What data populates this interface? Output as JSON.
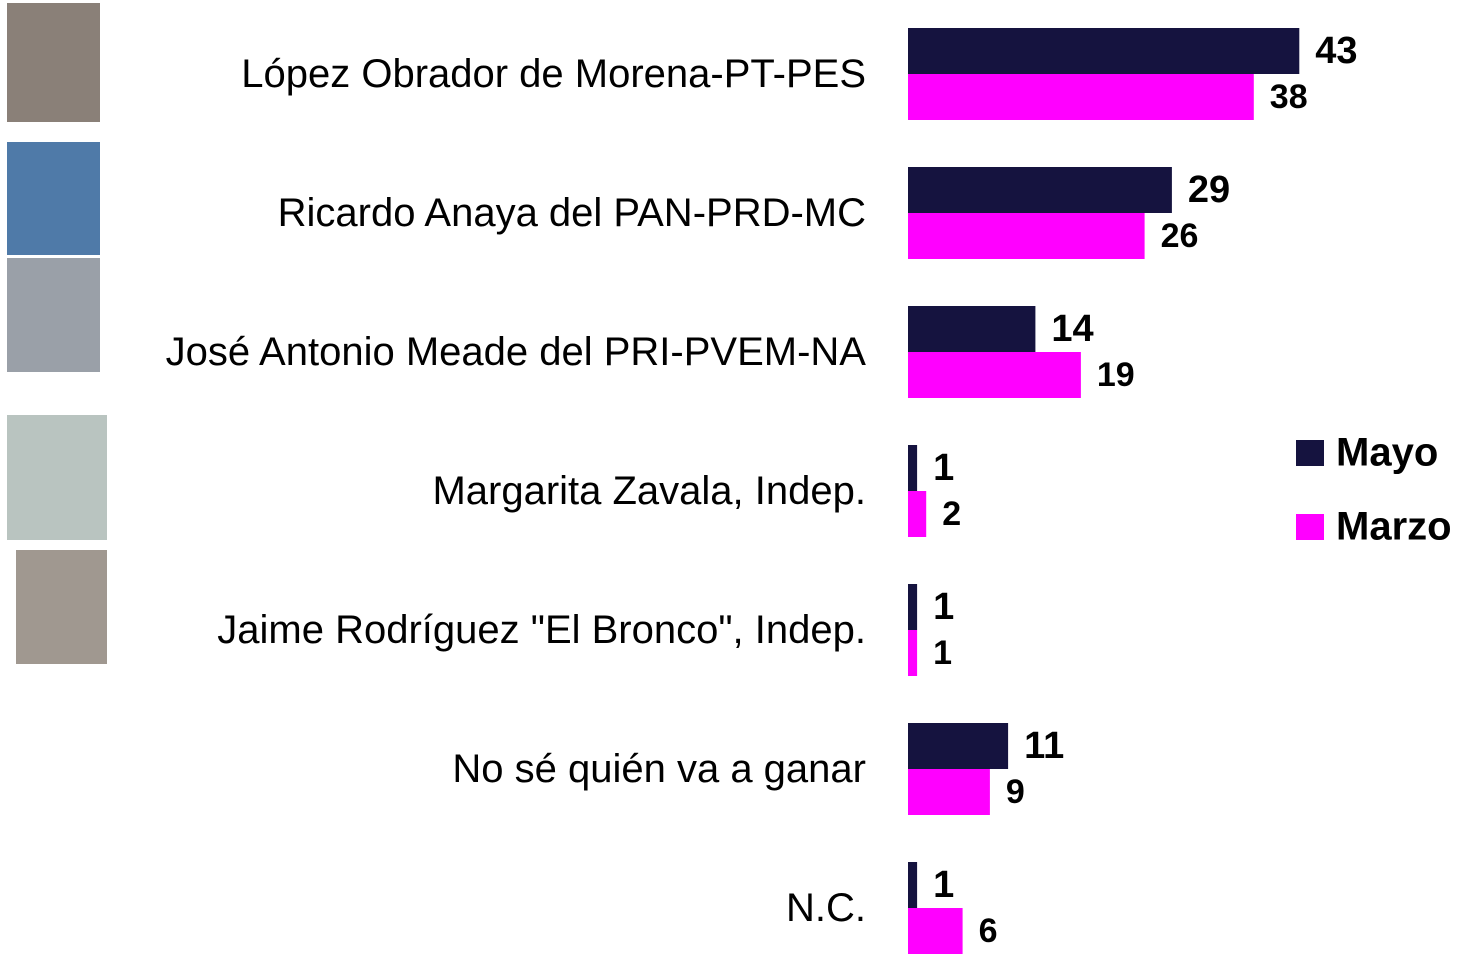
{
  "chart_data": {
    "type": "bar",
    "orientation": "horizontal",
    "categories": [
      "López Obrador de Morena-PT-PES",
      "Ricardo Anaya del PAN-PRD-MC",
      "José Antonio Meade del PRI-PVEM-NA",
      "Margarita Zavala, Indep.",
      "Jaime Rodríguez \"El Bronco\", Indep.",
      "No sé quién va a ganar",
      "N.C."
    ],
    "series": [
      {
        "name": "Mayo",
        "color": "#15133f",
        "values": [
          43,
          29,
          14,
          1,
          1,
          11,
          1
        ]
      },
      {
        "name": "Marzo",
        "color": "#ff00ff",
        "values": [
          38,
          26,
          19,
          2,
          1,
          9,
          6
        ]
      }
    ],
    "legend": "right"
  }
}
